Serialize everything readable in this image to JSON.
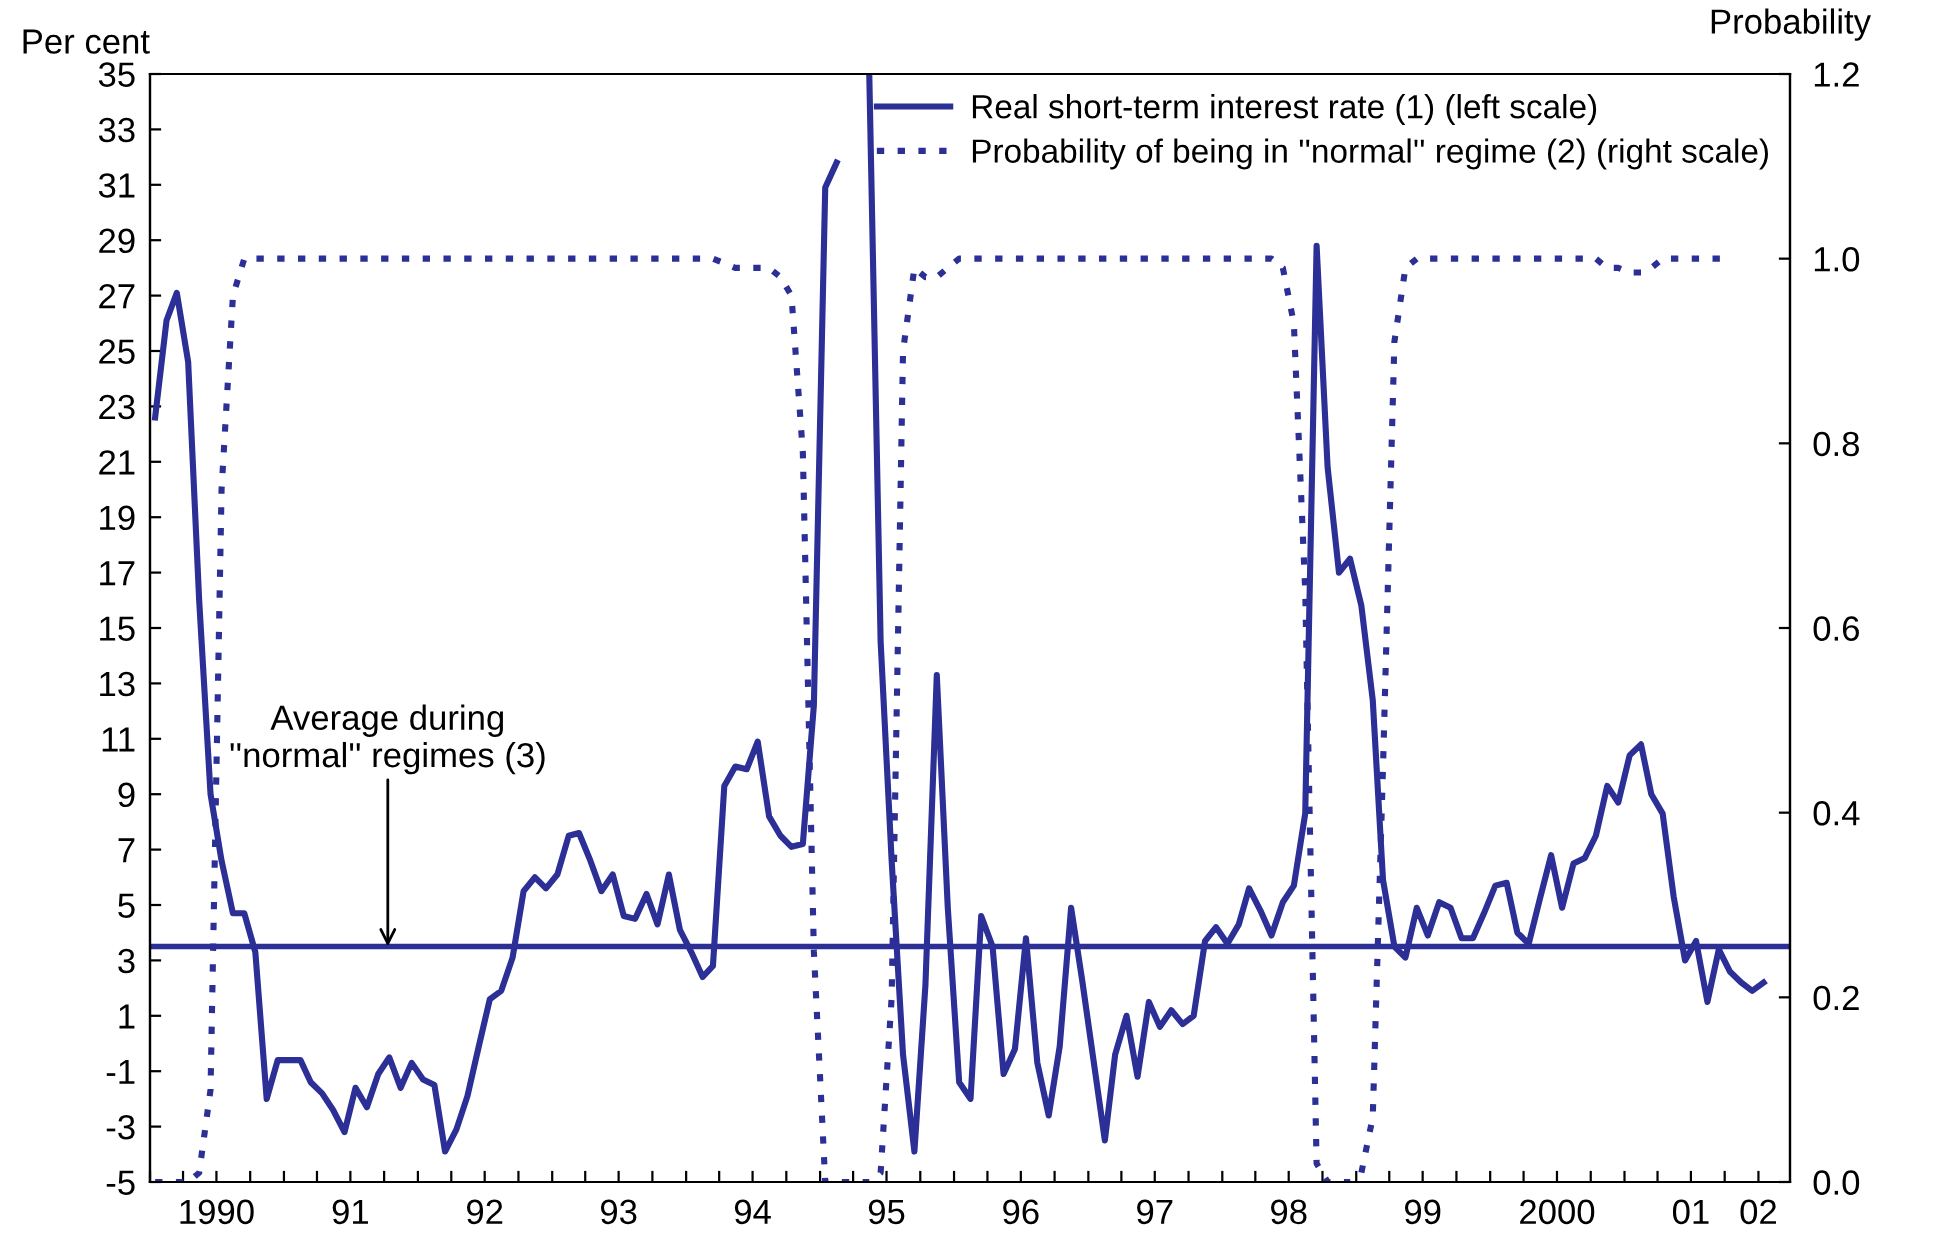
{
  "chart_data": {
    "type": "line",
    "ylabel": "Per cent",
    "y2label": "Probability",
    "x": [
      "1990-01",
      "1990-02",
      "1990-03",
      "1990-04",
      "1990-05",
      "1990-06",
      "1990-07",
      "1990-08",
      "1990-09",
      "1990-10",
      "1990-11",
      "1990-12",
      "1991-01",
      "1991-02",
      "1991-03",
      "1991-04",
      "1991-05",
      "1991-06",
      "1991-07",
      "1991-08",
      "1991-09",
      "1991-10",
      "1991-11",
      "1991-12",
      "1992-01",
      "1992-02",
      "1992-03",
      "1992-04",
      "1992-05",
      "1992-06",
      "1992-07",
      "1992-08",
      "1992-09",
      "1992-10",
      "1992-11",
      "1992-12",
      "1993-01",
      "1993-02",
      "1993-03",
      "1993-04",
      "1993-05",
      "1993-06",
      "1993-07",
      "1993-08",
      "1993-09",
      "1993-10",
      "1993-11",
      "1993-12",
      "1994-01",
      "1994-02",
      "1994-03",
      "1994-04",
      "1994-05",
      "1994-06",
      "1994-07",
      "1994-08",
      "1994-09",
      "1994-10",
      "1994-11",
      "1994-12",
      "1995-01",
      "1995-02",
      "1995-03",
      "1995-04",
      "1995-05",
      "1995-06",
      "1995-07",
      "1995-08",
      "1995-09",
      "1995-10",
      "1995-11",
      "1995-12",
      "1996-01",
      "1996-02",
      "1996-03",
      "1996-04",
      "1996-05",
      "1996-06",
      "1996-07",
      "1996-08",
      "1996-09",
      "1996-10",
      "1996-11",
      "1996-12",
      "1997-01",
      "1997-02",
      "1997-03",
      "1997-04",
      "1997-05",
      "1997-06",
      "1997-07",
      "1997-08",
      "1997-09",
      "1997-10",
      "1997-11",
      "1997-12",
      "1998-01",
      "1998-02",
      "1998-03",
      "1998-04",
      "1998-05",
      "1998-06",
      "1998-07",
      "1998-08",
      "1998-09",
      "1998-10",
      "1998-11",
      "1998-12",
      "1999-01",
      "1999-02",
      "1999-03",
      "1999-04",
      "1999-05",
      "1999-06",
      "1999-07",
      "1999-08",
      "1999-09",
      "1999-10",
      "1999-11",
      "1999-12",
      "2000-01",
      "2000-02",
      "2000-03",
      "2000-04",
      "2000-05",
      "2000-06",
      "2000-07",
      "2000-08",
      "2000-09",
      "2000-10",
      "2000-11",
      "2000-12",
      "2001-01",
      "2001-02",
      "2001-03",
      "2001-04",
      "2001-05",
      "2001-06",
      "2001-07",
      "2001-08",
      "2001-09",
      "2001-10",
      "2001-11",
      "2001-12",
      "2002-01"
    ],
    "series": [
      {
        "name": "Real short-term interest rate (1) (left scale)",
        "color": "#2b2f96",
        "line_style": "solid",
        "values": [
          22.6,
          26.1,
          27.1,
          24.6,
          16.0,
          9.0,
          6.6,
          4.7,
          4.7,
          3.3,
          -2.0,
          -0.6,
          -0.6,
          -0.6,
          -1.4,
          -1.8,
          -2.4,
          -3.2,
          -1.6,
          -2.3,
          -1.1,
          -0.5,
          -1.6,
          -0.7,
          -1.3,
          -1.5,
          -3.9,
          -3.1,
          -1.9,
          -0.1,
          1.6,
          1.9,
          3.1,
          5.5,
          6.0,
          5.6,
          6.1,
          7.5,
          7.6,
          6.6,
          5.5,
          6.1,
          4.6,
          4.5,
          5.4,
          4.3,
          6.1,
          4.1,
          3.3,
          2.4,
          2.8,
          9.3,
          10.0,
          9.9,
          10.9,
          8.2,
          7.5,
          7.1,
          7.2,
          12.2,
          30.9,
          31.8,
          null,
          null,
          35,
          14.5,
          6.6,
          -0.4,
          -3.9,
          2.1,
          13.3,
          4.9,
          -1.4,
          -2.0,
          4.6,
          3.5,
          -1.1,
          -0.2,
          3.8,
          -0.7,
          -2.6,
          -0.1,
          4.9,
          2.3,
          -0.6,
          -3.5,
          -0.4,
          1.0,
          -1.2,
          1.5,
          0.6,
          1.2,
          0.7,
          1.0,
          3.7,
          4.2,
          3.6,
          4.3,
          5.6,
          4.8,
          3.9,
          5.1,
          5.7,
          8.3,
          28.8,
          20.8,
          17.0,
          17.5,
          15.8,
          12.4,
          5.9,
          3.5,
          3.1,
          4.9,
          3.9,
          5.1,
          4.9,
          3.8,
          3.8,
          4.7,
          5.7,
          5.8,
          4.0,
          3.6,
          5.2,
          6.8,
          4.9,
          6.5,
          6.7,
          7.5,
          9.3,
          8.7,
          10.4,
          10.8,
          9.0,
          8.3,
          5.3,
          3.0,
          3.7,
          1.5,
          3.4,
          2.6,
          2.2,
          1.9,
          2.2
        ]
      },
      {
        "name": "Probability of being in ''normal'' regime (2) (right scale)",
        "color": "#2b2f96",
        "line_style": "dotted",
        "axis": "y2",
        "values": [
          0,
          0,
          0,
          0,
          0.01,
          0.1,
          0.75,
          0.96,
          1.0,
          1.0,
          1.0,
          1.0,
          1.0,
          1.0,
          1.0,
          1.0,
          1.0,
          1.0,
          1.0,
          1.0,
          1.0,
          1.0,
          1.0,
          1.0,
          1.0,
          1.0,
          1.0,
          1.0,
          1.0,
          1.0,
          1.0,
          1.0,
          1.0,
          1.0,
          1.0,
          1.0,
          1.0,
          1.0,
          1.0,
          1.0,
          1.0,
          1.0,
          1.0,
          1.0,
          1.0,
          1.0,
          1.0,
          1.0,
          1.0,
          1.0,
          1.0,
          0.995,
          0.99,
          0.99,
          0.99,
          0.99,
          0.98,
          0.96,
          0.79,
          0.25,
          0,
          0,
          0,
          0,
          0,
          0.01,
          0.2,
          0.9,
          0.99,
          0.98,
          0.98,
          0.99,
          1.0,
          1.0,
          1.0,
          1.0,
          1.0,
          1.0,
          1.0,
          1.0,
          1.0,
          1.0,
          1.0,
          1.0,
          1.0,
          1.0,
          1.0,
          1.0,
          1.0,
          1.0,
          1.0,
          1.0,
          1.0,
          1.0,
          1.0,
          1.0,
          1.0,
          1.0,
          1.0,
          1.0,
          1.0,
          0.99,
          0.93,
          0.64,
          0.02,
          0,
          0,
          0,
          0.01,
          0.07,
          0.45,
          0.91,
          0.99,
          1.0,
          1.0,
          1.0,
          1.0,
          1.0,
          1.0,
          1.0,
          1.0,
          1.0,
          1.0,
          1.0,
          1.0,
          1.0,
          1.0,
          1.0,
          1.0,
          1.0,
          0.99,
          0.99,
          0.985,
          0.985,
          0.99,
          1.0,
          1.0,
          1.0,
          1.0,
          1.0,
          1.0,
          1.0,
          null,
          null,
          null
        ]
      }
    ],
    "ylim": [
      -5,
      35
    ],
    "yticks": [
      -5,
      -3,
      -1,
      1,
      3,
      5,
      7,
      9,
      11,
      13,
      15,
      17,
      19,
      21,
      23,
      25,
      27,
      29,
      31,
      33,
      35
    ],
    "y2lim": [
      0,
      1.2
    ],
    "y2ticks": [
      {
        "value": 0,
        "label": "0.0"
      },
      {
        "value": 0.2,
        "label": "0.2"
      },
      {
        "value": 0.4,
        "label": "0.4"
      },
      {
        "value": 0.6,
        "label": "0.6"
      },
      {
        "value": 0.8,
        "label": "0.8"
      },
      {
        "value": 1.0,
        "label": "1.0"
      },
      {
        "value": 1.2,
        "label": "1.2"
      }
    ],
    "xlim": [
      "1990-01-01",
      "2002-03-28"
    ],
    "xticks": [
      {
        "value": "1990-01-01",
        "label": null
      },
      {
        "value": "1990-04-01",
        "label": null
      },
      {
        "value": "1990-07-01",
        "label": "1990"
      },
      {
        "value": "1990-10-01",
        "label": null
      },
      {
        "value": "1991-01-01",
        "label": null
      },
      {
        "value": "1991-04-01",
        "label": null
      },
      {
        "value": "1991-07-01",
        "label": "91"
      },
      {
        "value": "1991-10-01",
        "label": null
      },
      {
        "value": "1992-01-01",
        "label": null
      },
      {
        "value": "1992-04-01",
        "label": null
      },
      {
        "value": "1992-07-01",
        "label": "92"
      },
      {
        "value": "1992-10-01",
        "label": null
      },
      {
        "value": "1993-01-01",
        "label": null
      },
      {
        "value": "1993-04-01",
        "label": null
      },
      {
        "value": "1993-07-01",
        "label": "93"
      },
      {
        "value": "1993-10-01",
        "label": null
      },
      {
        "value": "1994-01-01",
        "label": null
      },
      {
        "value": "1994-04-01",
        "label": null
      },
      {
        "value": "1994-07-01",
        "label": "94"
      },
      {
        "value": "1994-10-01",
        "label": null
      },
      {
        "value": "1995-01-01",
        "label": null
      },
      {
        "value": "1995-04-01",
        "label": null
      },
      {
        "value": "1995-07-01",
        "label": "95"
      },
      {
        "value": "1995-10-01",
        "label": null
      },
      {
        "value": "1996-01-01",
        "label": null
      },
      {
        "value": "1996-04-01",
        "label": null
      },
      {
        "value": "1996-07-01",
        "label": "96"
      },
      {
        "value": "1996-10-01",
        "label": null
      },
      {
        "value": "1997-01-01",
        "label": null
      },
      {
        "value": "1997-04-01",
        "label": null
      },
      {
        "value": "1997-07-01",
        "label": "97"
      },
      {
        "value": "1997-10-01",
        "label": null
      },
      {
        "value": "1998-01-01",
        "label": null
      },
      {
        "value": "1998-04-01",
        "label": null
      },
      {
        "value": "1998-07-01",
        "label": "98"
      },
      {
        "value": "1998-10-01",
        "label": null
      },
      {
        "value": "1999-01-01",
        "label": null
      },
      {
        "value": "1999-04-01",
        "label": null
      },
      {
        "value": "1999-07-01",
        "label": "99"
      },
      {
        "value": "1999-10-01",
        "label": null
      },
      {
        "value": "2000-01-01",
        "label": null
      },
      {
        "value": "2000-04-01",
        "label": null
      },
      {
        "value": "2000-07-01",
        "label": "2000"
      },
      {
        "value": "2000-10-01",
        "label": null
      },
      {
        "value": "2001-01-01",
        "label": null
      },
      {
        "value": "2001-04-01",
        "label": null
      },
      {
        "value": "2001-07-01",
        "label": "01"
      },
      {
        "value": "2001-10-01",
        "label": null
      },
      {
        "value": "2002-01-01",
        "label": "02"
      }
    ],
    "ref_lines": [
      {
        "axis": "y",
        "value": 3.5,
        "label": "Average during\n''normal'' regimes (3)",
        "color": "#2b2f96",
        "line_style": "solid"
      }
    ],
    "legend": "top right",
    "grid": false,
    "marker": "none"
  }
}
